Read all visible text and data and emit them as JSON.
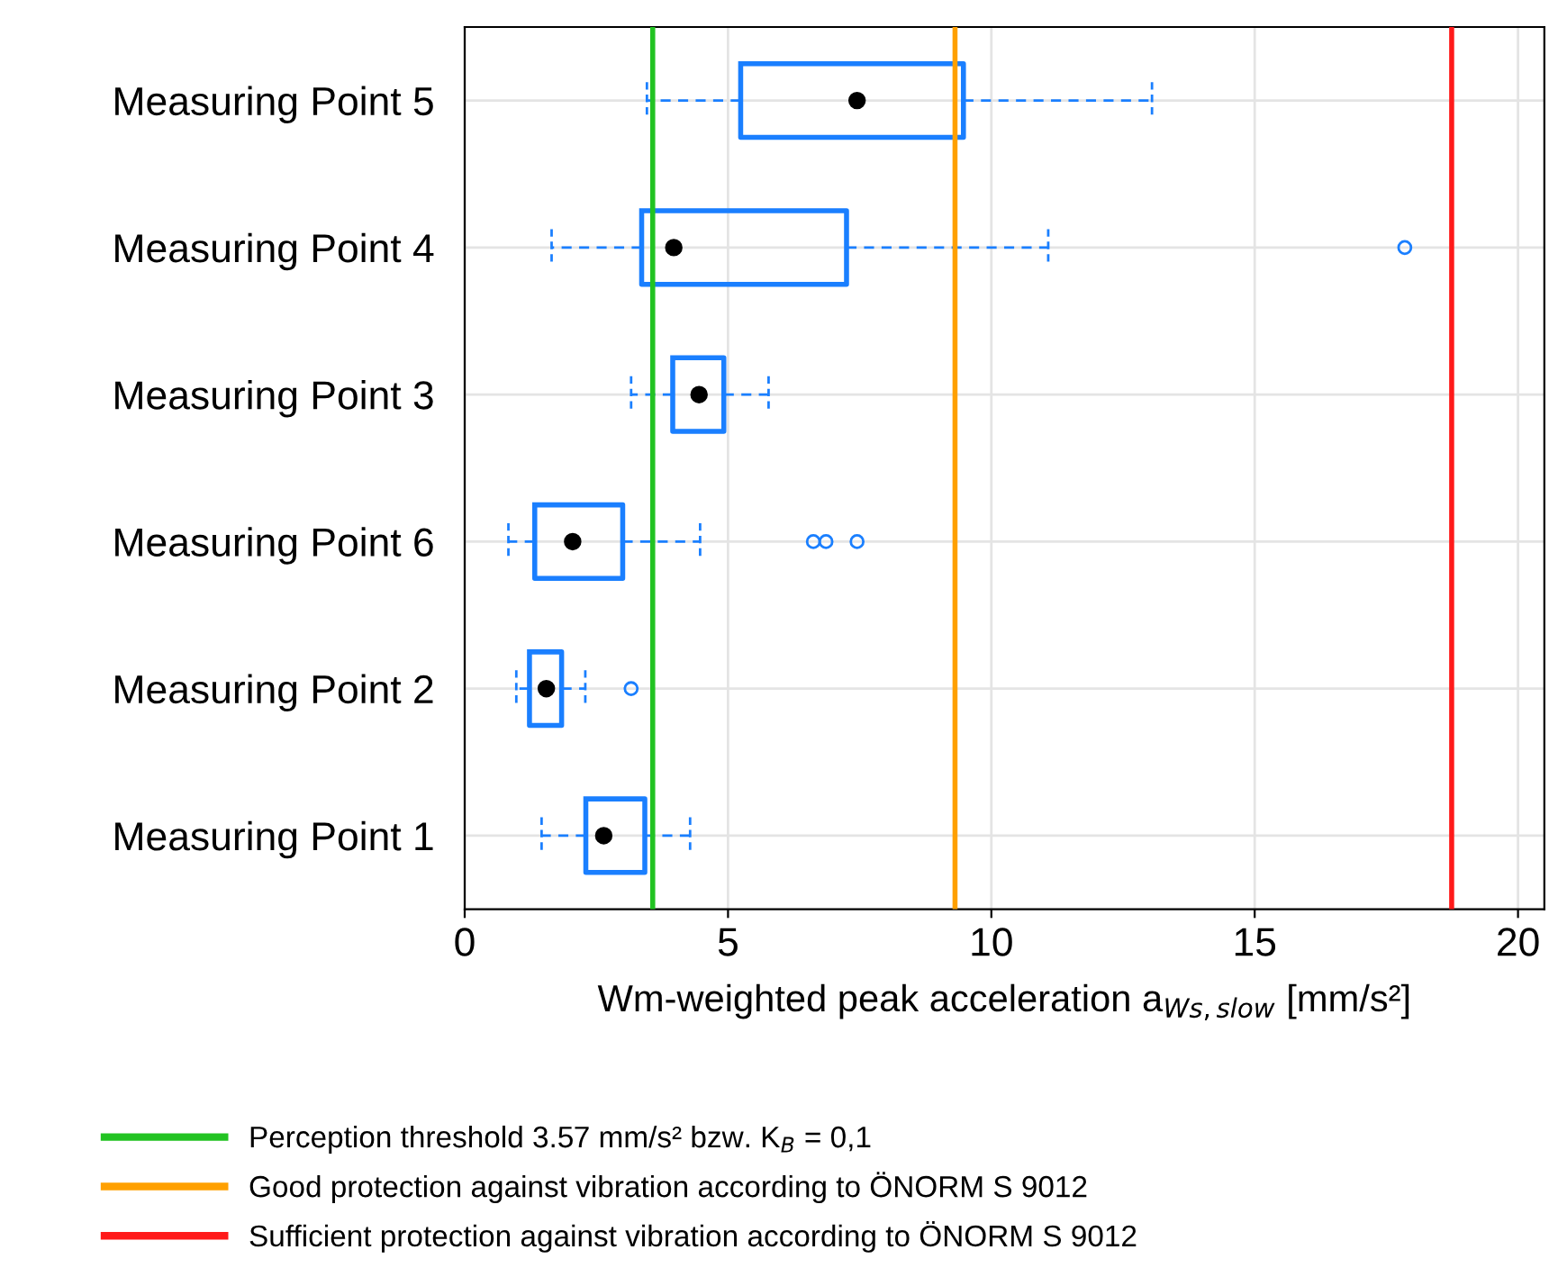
{
  "chart_data": {
    "type": "box",
    "orientation": "horizontal",
    "categories": [
      "Measuring Point 5",
      "Measuring Point 4",
      "Measuring Point 3",
      "Measuring Point 6",
      "Measuring Point 2",
      "Measuring Point 1"
    ],
    "boxes": [
      {
        "low": 3.46,
        "q1": 5.24,
        "median": 7.45,
        "q3": 9.47,
        "high": 13.05
      },
      {
        "low": 1.65,
        "q1": 3.36,
        "median": 3.97,
        "q3": 7.25,
        "high": 11.08,
        "outliers": [
          17.85
        ]
      },
      {
        "low": 3.16,
        "q1": 3.95,
        "median": 4.45,
        "q3": 4.92,
        "high": 5.77
      },
      {
        "low": 0.83,
        "q1": 1.33,
        "median": 2.05,
        "q3": 3.0,
        "high": 4.47,
        "outliers": [
          6.62,
          6.86,
          7.45
        ]
      },
      {
        "low": 0.98,
        "q1": 1.23,
        "median": 1.55,
        "q3": 1.84,
        "high": 2.29,
        "outliers": [
          3.16
        ]
      },
      {
        "low": 1.46,
        "q1": 2.3,
        "median": 2.64,
        "q3": 3.42,
        "high": 4.28
      }
    ],
    "color": "#1a7fff",
    "xlabel": "Wm-weighted peak acceleration a$_{Ws,slow}$ [mm/s²]",
    "xlim": [
      0,
      20.5
    ],
    "xticks": [
      0,
      5,
      10,
      15,
      20
    ],
    "grid": true,
    "legend": "bottom",
    "ref_lines": [
      {
        "axis": "x",
        "value": 3.57,
        "label": "Perception threshold 3.57 mm/s² bzw. K$_{B}$ = 0,1",
        "color": "#22c322"
      },
      {
        "axis": "x",
        "value": 9.31,
        "label": "Good protection against vibration according to ÖNORM S 9012",
        "color": "#ffa000"
      },
      {
        "axis": "x",
        "value": 18.74,
        "label": "Sufficient protection against vibration according to ÖNORM S 9012",
        "color": "#ff1a1a"
      }
    ]
  }
}
